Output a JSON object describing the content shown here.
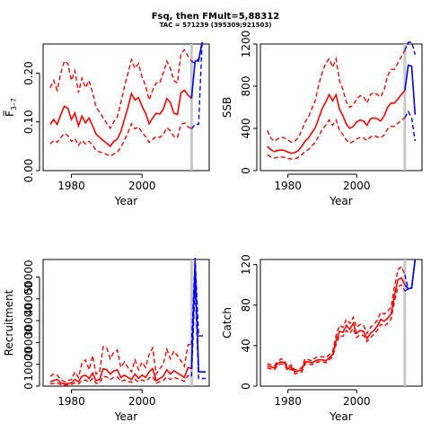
{
  "title": "Fsq, then FMult=5,88312",
  "subtitle": "TAC = 571239 (395309;921503)",
  "colors": {
    "estimate": "#ff0000",
    "forecast": "#0000ff",
    "divider": "#c8c8c8",
    "axis": "#000000"
  },
  "chart_data": [
    {
      "id": "fbar",
      "type": "line",
      "xlabel": "Year",
      "ylabel": "F̅",
      "ylabel_sub": "3–7",
      "xlim": [
        1972,
        2019
      ],
      "ylim": [
        0,
        0.26
      ],
      "xticks": [
        1980,
        2000
      ],
      "yticks": [
        0.0,
        0.1,
        0.2
      ],
      "ytick_labels": [
        "0.00",
        "0.10",
        "0.20"
      ],
      "divider_year": 2014,
      "estimate": {
        "x": [
          1974,
          1975,
          1976,
          1977,
          1978,
          1979,
          1980,
          1981,
          1982,
          1983,
          1984,
          1985,
          1986,
          1987,
          1988,
          1989,
          1990,
          1991,
          1992,
          1993,
          1994,
          1995,
          1996,
          1997,
          1998,
          1999,
          2000,
          2001,
          2002,
          2003,
          2004,
          2005,
          2006,
          2007,
          2008,
          2009,
          2010,
          2011,
          2012,
          2013,
          2014
        ],
        "mid": [
          0.095,
          0.105,
          0.095,
          0.115,
          0.132,
          0.128,
          0.105,
          0.118,
          0.092,
          0.112,
          0.098,
          0.108,
          0.092,
          0.075,
          0.068,
          0.062,
          0.056,
          0.05,
          0.06,
          0.065,
          0.08,
          0.105,
          0.13,
          0.158,
          0.145,
          0.15,
          0.132,
          0.118,
          0.096,
          0.108,
          0.118,
          0.116,
          0.126,
          0.148,
          0.14,
          0.118,
          0.115,
          0.16,
          0.165,
          0.155,
          0.148
        ],
        "lower": [
          0.055,
          0.062,
          0.058,
          0.068,
          0.076,
          0.072,
          0.06,
          0.066,
          0.052,
          0.062,
          0.055,
          0.06,
          0.052,
          0.042,
          0.038,
          0.036,
          0.033,
          0.03,
          0.034,
          0.038,
          0.048,
          0.062,
          0.078,
          0.096,
          0.086,
          0.09,
          0.078,
          0.07,
          0.058,
          0.064,
          0.07,
          0.068,
          0.074,
          0.088,
          0.082,
          0.07,
          0.068,
          0.095,
          0.098,
          0.09,
          0.086
        ],
        "upper": [
          0.17,
          0.185,
          0.165,
          0.2,
          0.225,
          0.22,
          0.185,
          0.205,
          0.16,
          0.19,
          0.17,
          0.185,
          0.16,
          0.13,
          0.12,
          0.108,
          0.097,
          0.087,
          0.1,
          0.11,
          0.14,
          0.172,
          0.2,
          0.228,
          0.21,
          0.22,
          0.192,
          0.175,
          0.145,
          0.165,
          0.18,
          0.18,
          0.2,
          0.225,
          0.21,
          0.185,
          0.18,
          0.24,
          0.248,
          0.235,
          0.225
        ]
      },
      "forecast": {
        "x": [
          2014,
          2015,
          2016,
          2017
        ],
        "mid": [
          0.148,
          0.225,
          0.225,
          0.3
        ],
        "lower": [
          0.086,
          0.095,
          0.095,
          0.3
        ],
        "upper": [
          0.225,
          0.22,
          0.23,
          0.3
        ]
      }
    },
    {
      "id": "ssb",
      "type": "line",
      "xlabel": "Year",
      "ylabel": "SSB",
      "xlim": [
        1972,
        2019
      ],
      "ylim": [
        0,
        1200
      ],
      "xticks": [
        1980,
        2000
      ],
      "yticks": [
        0,
        400,
        800,
        1200
      ],
      "ytick_labels": [
        "0",
        "400",
        "800",
        "1200"
      ],
      "divider_year": 2014,
      "estimate": {
        "x": [
          1974,
          1975,
          1976,
          1977,
          1978,
          1979,
          1980,
          1981,
          1982,
          1983,
          1984,
          1985,
          1986,
          1987,
          1988,
          1989,
          1990,
          1991,
          1992,
          1993,
          1994,
          1995,
          1996,
          1997,
          1998,
          1999,
          2000,
          2001,
          2002,
          2003,
          2004,
          2005,
          2006,
          2007,
          2008,
          2009,
          2010,
          2011,
          2012,
          2013,
          2014
        ],
        "mid": [
          230,
          200,
          180,
          190,
          195,
          190,
          175,
          165,
          170,
          190,
          230,
          280,
          310,
          360,
          410,
          500,
          590,
          650,
          720,
          660,
          720,
          580,
          520,
          440,
          400,
          420,
          460,
          480,
          470,
          430,
          490,
          500,
          490,
          470,
          520,
          600,
          640,
          640,
          680,
          720,
          760
        ],
        "lower": [
          150,
          130,
          120,
          125,
          130,
          125,
          115,
          110,
          110,
          125,
          150,
          180,
          200,
          235,
          270,
          330,
          390,
          430,
          480,
          430,
          480,
          380,
          340,
          290,
          260,
          275,
          300,
          315,
          310,
          285,
          320,
          330,
          320,
          310,
          340,
          395,
          420,
          420,
          450,
          475,
          500
        ],
        "upper": [
          380,
          310,
          280,
          300,
          320,
          310,
          290,
          270,
          280,
          310,
          380,
          460,
          510,
          590,
          670,
          820,
          930,
          1020,
          1060,
          980,
          1060,
          850,
          770,
          650,
          600,
          620,
          680,
          710,
          700,
          640,
          720,
          740,
          720,
          700,
          770,
          900,
          960,
          960,
          1020,
          1080,
          1140
        ]
      },
      "forecast": {
        "x": [
          2014,
          2015,
          2016,
          2017
        ],
        "mid": [
          760,
          1000,
          990,
          530
        ],
        "lower": [
          500,
          560,
          500,
          280
        ],
        "upper": [
          1140,
          1500,
          1480,
          1100
        ]
      }
    },
    {
      "id": "recruitment",
      "type": "line",
      "xlabel": "Year",
      "ylabel": "Recruitment",
      "xlim": [
        1972,
        2019
      ],
      "ylim": [
        0,
        58000
      ],
      "xticks": [
        1980,
        2000
      ],
      "yticks": [
        0,
        10000,
        20000,
        30000,
        40000,
        50000
      ],
      "ytick_labels": [
        "0",
        "10000",
        "20000",
        "30000",
        "40000",
        "50000"
      ],
      "divider_year": 2014,
      "estimate": {
        "x": [
          1974,
          1975,
          1976,
          1977,
          1978,
          1979,
          1980,
          1981,
          1982,
          1983,
          1984,
          1985,
          1986,
          1987,
          1988,
          1989,
          1990,
          1991,
          1992,
          1993,
          1994,
          1995,
          1996,
          1997,
          1998,
          1999,
          2000,
          2001,
          2002,
          2003,
          2004,
          2005,
          2006,
          2007,
          2008,
          2009,
          2010,
          2011,
          2012,
          2013,
          2014
        ],
        "mid": [
          2000,
          2500,
          3000,
          1500,
          1000,
          1200,
          1500,
          3000,
          2000,
          4500,
          5000,
          3500,
          6000,
          2500,
          3000,
          8000,
          7500,
          5500,
          7000,
          7500,
          4000,
          5000,
          4000,
          3000,
          5500,
          3500,
          5000,
          4000,
          6500,
          8000,
          2500,
          3500,
          4500,
          7500,
          5500,
          7000,
          6000,
          5000,
          4000,
          8500,
          8000
        ],
        "lower": [
          1000,
          1200,
          1500,
          700,
          500,
          600,
          700,
          1500,
          1000,
          2500,
          2800,
          1800,
          3500,
          1300,
          1500,
          4500,
          4200,
          3000,
          4000,
          4200,
          2200,
          2800,
          2200,
          1700,
          3000,
          2000,
          2800,
          2200,
          3600,
          4500,
          1400,
          2000,
          2500,
          4200,
          3000,
          4000,
          3400,
          2800,
          2200,
          4800,
          4500
        ],
        "upper": [
          4500,
          5500,
          5000,
          3000,
          2000,
          2500,
          3000,
          6500,
          4000,
          10500,
          12000,
          7500,
          14000,
          5500,
          6500,
          18000,
          17500,
          12500,
          15500,
          16500,
          8500,
          11000,
          8500,
          6500,
          12000,
          7500,
          11000,
          8500,
          14500,
          17500,
          5500,
          8000,
          10000,
          17000,
          12500,
          16000,
          14000,
          11500,
          9000,
          19000,
          19000
        ]
      },
      "forecast": {
        "x": [
          2014,
          2015,
          2016,
          2017,
          2018
        ],
        "mid": [
          8000,
          57000,
          6500,
          6500,
          6500
        ],
        "lower": [
          4500,
          46000,
          3500,
          3500,
          3500
        ],
        "upper": [
          19000,
          60000,
          23000,
          23000,
          23000
        ]
      }
    },
    {
      "id": "catch",
      "type": "line",
      "xlabel": "Year",
      "ylabel": "Catch",
      "xlim": [
        1972,
        2019
      ],
      "ylim": [
        0,
        125
      ],
      "xticks": [
        1980,
        2000
      ],
      "yticks": [
        0,
        40,
        80,
        120
      ],
      "ytick_labels": [
        "0",
        "40",
        "80",
        "120"
      ],
      "divider_year": 2014,
      "estimate": {
        "x": [
          1974,
          1975,
          1976,
          1977,
          1978,
          1979,
          1980,
          1981,
          1982,
          1983,
          1984,
          1985,
          1986,
          1987,
          1988,
          1989,
          1990,
          1991,
          1992,
          1993,
          1994,
          1995,
          1996,
          1997,
          1998,
          1999,
          2000,
          2001,
          2002,
          2003,
          2004,
          2005,
          2006,
          2007,
          2008,
          2009,
          2010,
          2011,
          2012,
          2013,
          2014
        ],
        "mid": [
          20,
          19,
          18,
          22,
          24,
          23,
          17,
          19,
          14,
          15,
          16,
          24,
          24,
          23,
          25,
          26,
          26,
          25,
          28,
          31,
          45,
          54,
          53,
          60,
          56,
          62,
          52,
          55,
          54,
          47,
          52,
          55,
          59,
          66,
          64,
          67,
          71,
          90,
          105,
          107,
          100
        ],
        "lower": [
          18,
          17,
          16,
          20,
          22,
          21,
          15,
          17,
          12,
          13,
          14,
          22,
          22,
          21,
          23,
          24,
          24,
          23,
          26,
          29,
          41,
          50,
          49,
          55,
          52,
          57,
          48,
          51,
          50,
          44,
          48,
          51,
          55,
          61,
          59,
          62,
          66,
          84,
          98,
          100,
          94
        ],
        "upper": [
          22,
          21,
          20,
          24,
          27,
          25,
          19,
          21,
          16,
          17,
          18,
          27,
          26,
          25,
          28,
          29,
          29,
          28,
          31,
          34,
          50,
          60,
          58,
          66,
          62,
          68,
          58,
          61,
          60,
          52,
          58,
          61,
          65,
          73,
          71,
          74,
          78,
          98,
          115,
          118,
          110
        ]
      },
      "forecast": {
        "x": [
          2014,
          2015,
          2016,
          2017
        ],
        "mid": [
          100,
          96,
          97,
          125
        ],
        "lower": [
          94,
          96,
          97,
          125
        ],
        "upper": [
          110,
          96,
          97,
          125
        ]
      }
    }
  ]
}
